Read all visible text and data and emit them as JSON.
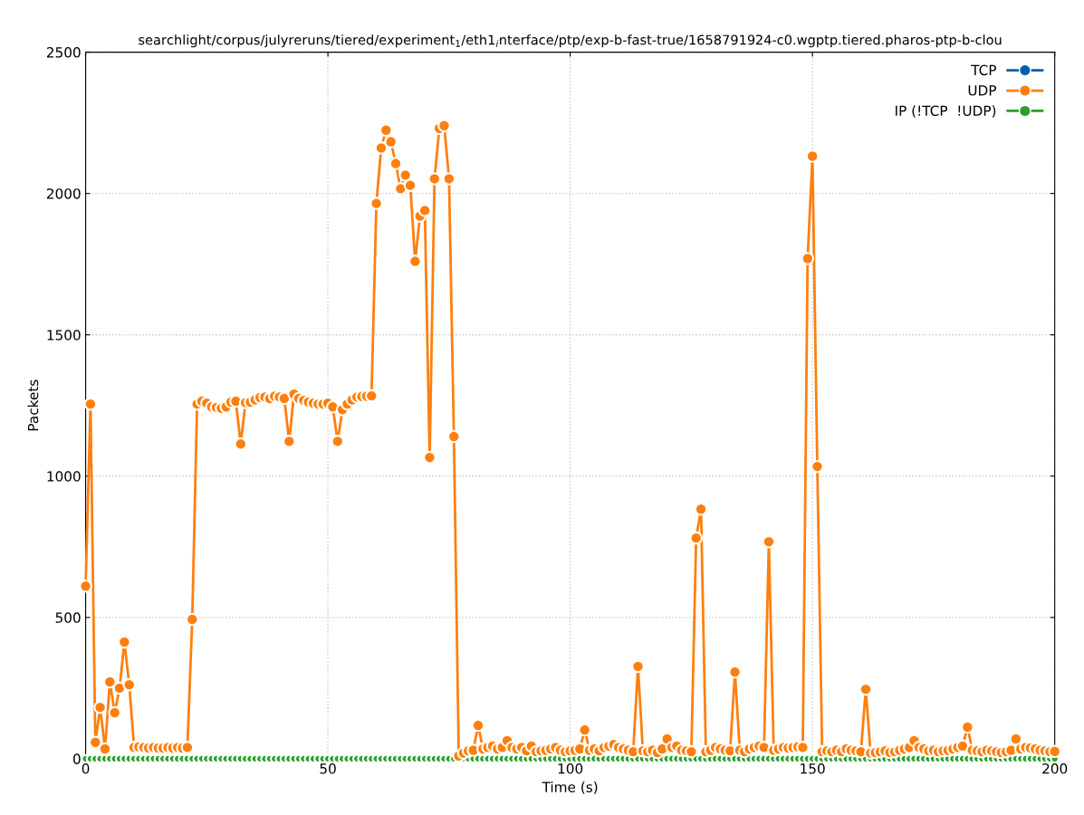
{
  "chart_data": {
    "type": "line",
    "title": "searchlight/corpus/julyreruns/tiered/experiment$_{1}$/eth1$_{i}$nterface/ptp/exp-b-fast-true/1658791924-c0.wgptp.tiered.pharos-ptp-b-clou",
    "xlabel": "Time (s)",
    "ylabel": "Packets",
    "x": [
      0,
      1,
      2,
      3,
      4,
      5,
      6,
      7,
      8,
      9,
      10,
      11,
      12,
      13,
      14,
      15,
      16,
      17,
      18,
      19,
      20,
      21,
      22,
      23,
      24,
      25,
      26,
      27,
      28,
      29,
      30,
      31,
      32,
      33,
      34,
      35,
      36,
      37,
      38,
      39,
      40,
      41,
      42,
      43,
      44,
      45,
      46,
      47,
      48,
      49,
      50,
      51,
      52,
      53,
      54,
      55,
      56,
      57,
      58,
      59,
      60,
      61,
      62,
      63,
      64,
      65,
      66,
      67,
      68,
      69,
      70,
      71,
      72,
      73,
      74,
      75,
      76,
      77,
      78,
      79,
      80,
      81,
      82,
      83,
      84,
      85,
      86,
      87,
      88,
      89,
      90,
      91,
      92,
      93,
      94,
      95,
      96,
      97,
      98,
      99,
      100,
      101,
      102,
      103,
      104,
      105,
      106,
      107,
      108,
      109,
      110,
      111,
      112,
      113,
      114,
      115,
      116,
      117,
      118,
      119,
      120,
      121,
      122,
      123,
      124,
      125,
      126,
      127,
      128,
      129,
      130,
      131,
      132,
      133,
      134,
      135,
      136,
      137,
      138,
      139,
      140,
      141,
      142,
      143,
      144,
      145,
      146,
      147,
      148,
      149,
      150,
      151,
      152,
      153,
      154,
      155,
      156,
      157,
      158,
      159,
      160,
      161,
      162,
      163,
      164,
      165,
      166,
      167,
      168,
      169,
      170,
      171,
      172,
      173,
      174,
      175,
      176,
      177,
      178,
      179,
      180,
      181,
      182,
      183,
      184,
      185,
      186,
      187,
      188,
      189,
      190,
      191,
      192,
      193,
      194,
      195,
      196,
      197,
      198,
      199,
      200
    ],
    "series": [
      {
        "name": "TCP",
        "color": "#0060ad",
        "values": [
          null,
          null,
          null,
          null,
          null,
          null,
          null,
          null,
          null,
          null,
          null,
          null,
          null,
          null,
          null,
          null,
          null,
          null,
          null,
          null,
          null,
          null,
          null,
          null,
          null,
          null,
          null,
          null,
          null,
          null,
          null,
          null,
          null,
          null,
          null,
          null,
          null,
          null,
          null,
          null,
          null,
          null,
          null,
          null,
          null,
          null,
          null,
          null,
          null,
          null,
          null,
          null,
          null,
          null,
          null,
          null,
          null,
          null,
          null,
          null,
          null,
          null,
          null,
          null,
          null,
          null,
          null,
          null,
          null,
          null,
          null,
          null,
          null,
          null,
          null,
          null,
          null,
          null,
          null,
          null,
          null,
          null,
          null,
          null,
          null,
          null,
          null,
          null,
          null,
          null,
          null,
          null,
          null,
          null,
          null,
          null,
          null,
          null,
          null,
          null,
          null,
          null,
          null,
          null,
          null,
          null,
          null,
          null,
          null,
          null,
          null,
          null,
          null,
          null,
          null,
          null,
          null,
          null,
          null,
          null,
          null,
          null,
          null,
          null,
          null,
          null,
          null,
          null,
          null,
          null,
          null,
          null,
          null,
          null,
          null,
          null,
          null,
          null,
          null,
          null,
          null,
          null,
          null,
          null,
          null,
          null,
          null,
          null,
          null,
          null,
          null,
          null,
          null,
          null,
          null,
          null,
          null,
          null,
          null,
          null,
          null,
          null,
          null,
          null,
          null,
          null,
          null,
          null,
          null,
          null,
          null,
          null,
          null,
          null,
          null,
          null,
          null,
          null,
          null,
          null,
          null,
          null,
          null,
          null,
          null,
          null,
          null,
          null,
          null,
          null,
          null,
          null,
          null,
          null,
          null,
          null,
          null,
          null,
          null,
          null,
          null
        ]
      },
      {
        "name": "UDP",
        "color": "#ff7f0e",
        "values": [
          611,
          1255,
          58,
          182,
          35,
          272,
          163,
          250,
          413,
          262,
          40,
          42,
          40,
          38,
          40,
          38,
          38,
          40,
          38,
          40,
          38,
          40,
          493,
          1255,
          1265,
          1258,
          1245,
          1243,
          1240,
          1245,
          1262,
          1265,
          1114,
          1260,
          1262,
          1270,
          1278,
          1280,
          1275,
          1283,
          1280,
          1275,
          1123,
          1290,
          1275,
          1268,
          1262,
          1258,
          1255,
          1255,
          1258,
          1245,
          1123,
          1235,
          1255,
          1270,
          1280,
          1282,
          1283,
          1284,
          1965,
          2161,
          2224,
          2183,
          2106,
          2017,
          2065,
          2029,
          1760,
          1920,
          1940,
          1066,
          2052,
          2230,
          2240,
          2052,
          1140,
          10,
          20,
          28,
          30,
          118,
          35,
          40,
          45,
          35,
          40,
          64,
          40,
          35,
          40,
          28,
          45,
          25,
          28,
          30,
          35,
          40,
          30,
          25,
          28,
          30,
          35,
          102,
          30,
          35,
          28,
          40,
          45,
          50,
          40,
          35,
          30,
          25,
          327,
          28,
          25,
          30,
          22,
          35,
          70,
          40,
          45,
          30,
          28,
          25,
          781,
          883,
          25,
          30,
          40,
          35,
          30,
          28,
          307,
          30,
          25,
          35,
          40,
          45,
          40,
          768,
          30,
          35,
          40,
          38,
          40,
          42,
          40,
          1770,
          2132,
          1034,
          25,
          28,
          25,
          30,
          25,
          35,
          30,
          28,
          25,
          246,
          20,
          22,
          25,
          28,
          22,
          25,
          30,
          35,
          40,
          64,
          40,
          35,
          28,
          30,
          25,
          28,
          30,
          35,
          40,
          45,
          112,
          30,
          28,
          25,
          30,
          28,
          25,
          22,
          25,
          30,
          70,
          35,
          40,
          38,
          35,
          30,
          28,
          25,
          26
        ]
      },
      {
        "name": "IP (!TCP  !UDP)",
        "color": "#2ca02c",
        "values": [
          0,
          0,
          0,
          0,
          0,
          0,
          0,
          0,
          0,
          0,
          0,
          0,
          0,
          0,
          0,
          0,
          0,
          0,
          0,
          0,
          0,
          0,
          0,
          0,
          0,
          0,
          0,
          0,
          0,
          0,
          0,
          0,
          0,
          0,
          0,
          0,
          0,
          0,
          0,
          0,
          0,
          0,
          0,
          0,
          0,
          0,
          0,
          0,
          0,
          0,
          0,
          0,
          0,
          0,
          0,
          0,
          0,
          0,
          0,
          0,
          0,
          0,
          0,
          0,
          0,
          0,
          0,
          0,
          0,
          0,
          0,
          0,
          0,
          0,
          0,
          0,
          0,
          0,
          0,
          0,
          0,
          0,
          0,
          0,
          0,
          0,
          0,
          0,
          0,
          0,
          0,
          0,
          0,
          0,
          0,
          0,
          0,
          0,
          0,
          0,
          0,
          0,
          0,
          0,
          0,
          0,
          0,
          0,
          0,
          0,
          0,
          0,
          0,
          0,
          0,
          0,
          0,
          0,
          0,
          0,
          0,
          0,
          0,
          0,
          0,
          0,
          0,
          0,
          0,
          0,
          0,
          0,
          0,
          0,
          0,
          0,
          0,
          0,
          0,
          0,
          0,
          0,
          0,
          0,
          0,
          0,
          0,
          0,
          0,
          0,
          0,
          0,
          0,
          0,
          0,
          0,
          0,
          0,
          0,
          0,
          0,
          0,
          0,
          0,
          0,
          0,
          0,
          0,
          0,
          0,
          0,
          0,
          0,
          0,
          0,
          0,
          0,
          0,
          0,
          0,
          0,
          0,
          0,
          0,
          0,
          0,
          0,
          0,
          0,
          0,
          0,
          0,
          0,
          0,
          0,
          0,
          0,
          0,
          0,
          0,
          0
        ]
      }
    ],
    "xlim": [
      0,
      200
    ],
    "xticks": [
      0,
      50,
      100,
      150,
      200
    ],
    "ylim": [
      0,
      2500
    ],
    "yticks": [
      0,
      500,
      1000,
      1500,
      2000,
      2500
    ],
    "grid": true,
    "legend": "top right",
    "marker": "circle",
    "line_style": "solid"
  }
}
